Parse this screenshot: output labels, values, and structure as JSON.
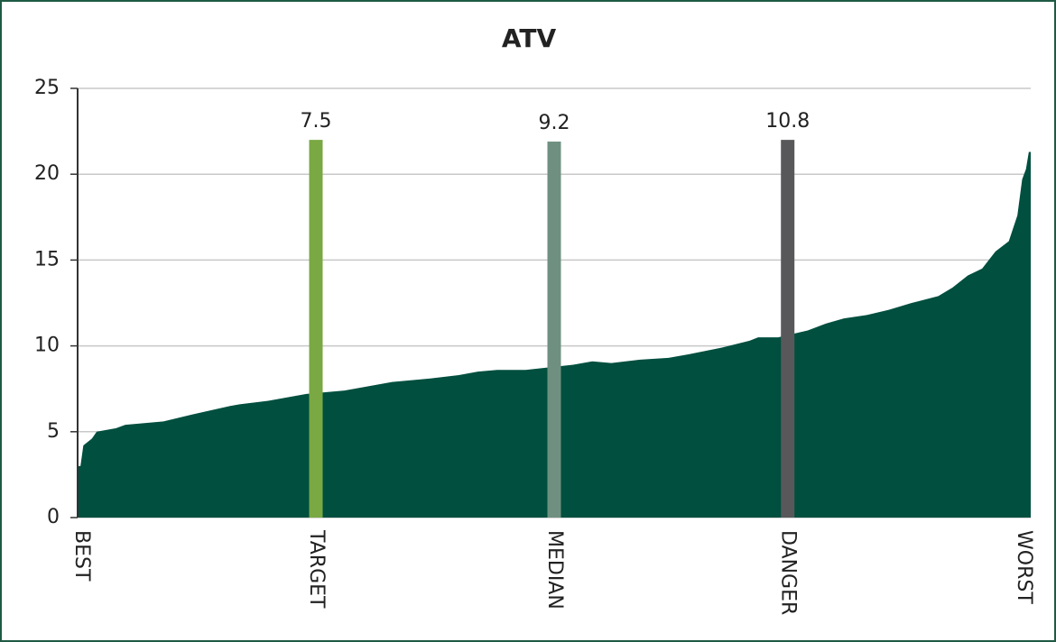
{
  "chart_data": {
    "type": "area",
    "title": "ATV",
    "series": [
      {
        "color": "#004f3f",
        "x": [
          0,
          0.3,
          0.6,
          1.5,
          2,
          4,
          5,
          9,
          12,
          16,
          17,
          20,
          24,
          28,
          33,
          37,
          40,
          42,
          44,
          47,
          52,
          54,
          56,
          59,
          62,
          64,
          67.6,
          70.5,
          71.4,
          73.5,
          76.6,
          78.5,
          80.4,
          82.8,
          85.1,
          87.5,
          90.3,
          91.8,
          93.4,
          94.9,
          96.3,
          97.7,
          98.6,
          99.1,
          99.5,
          99.8
        ],
        "values": [
          3,
          3,
          4.2,
          4.6,
          5.0,
          5.2,
          5.4,
          5.6,
          6.0,
          6.5,
          6.6,
          6.8,
          7.2,
          7.4,
          7.9,
          8.1,
          8.3,
          8.5,
          8.6,
          8.6,
          8.9,
          9.1,
          9.0,
          9.2,
          9.3,
          9.5,
          9.9,
          10.3,
          10.5,
          10.5,
          10.9,
          11.3,
          11.6,
          11.8,
          12.1,
          12.5,
          12.9,
          13.4,
          14.1,
          14.5,
          15.5,
          16.1,
          17.6,
          19.7,
          20.3,
          21.3
        ]
      }
    ],
    "reference_lines": [
      {
        "x": 25,
        "value": 7.5,
        "height": 22,
        "color": "#7aa843"
      },
      {
        "x": 50,
        "value": 9.2,
        "height": 21.9,
        "color": "#6f9080"
      },
      {
        "x": 74.5,
        "value": 10.8,
        "height": 22,
        "color": "#58585a"
      }
    ],
    "xlim": [
      0,
      100
    ],
    "xticks": [
      {
        "value": 0,
        "label": "BEST"
      },
      {
        "value": 25,
        "label": "TARGET"
      },
      {
        "value": 50,
        "label": "MEDIAN"
      },
      {
        "value": 74.5,
        "label": "DANGER"
      },
      {
        "value": 100,
        "label": "WORST"
      }
    ],
    "ylim": [
      0,
      25
    ],
    "yticks": [
      0,
      5,
      10,
      15,
      20,
      25
    ],
    "grid": true
  }
}
